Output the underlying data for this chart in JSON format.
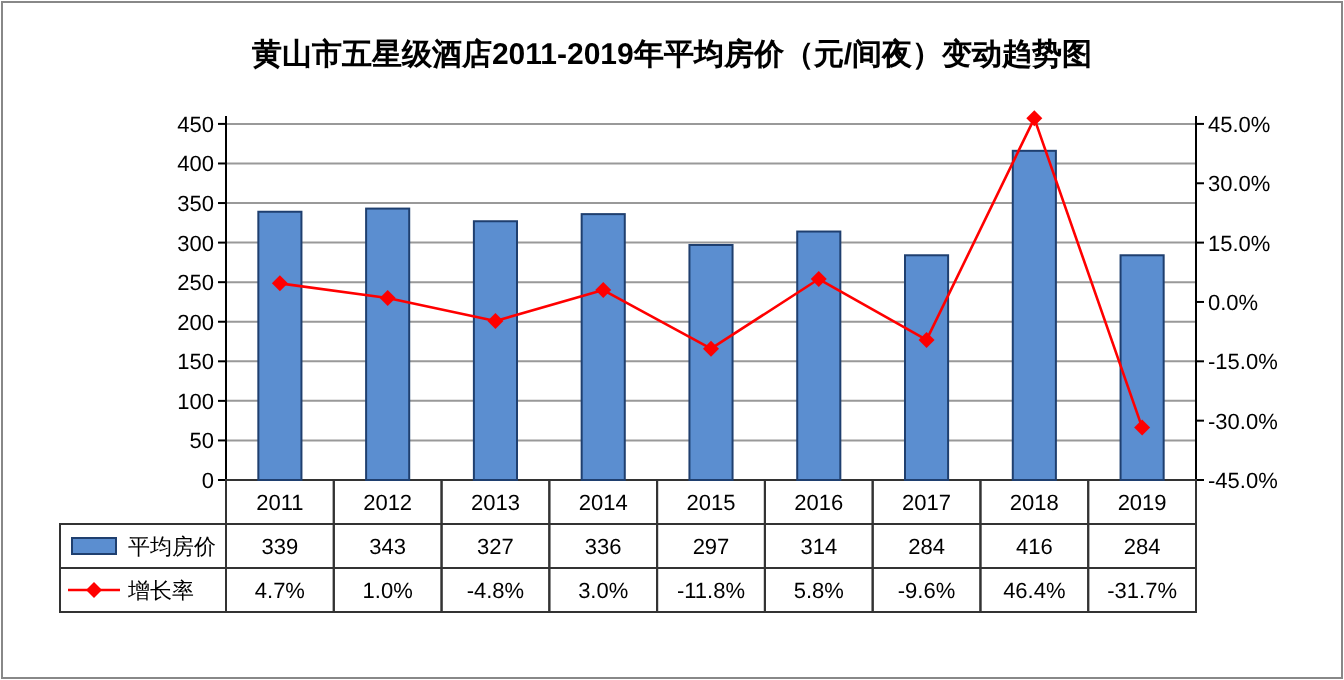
{
  "chart_data": {
    "type": "bar",
    "title": "黄山市五星级酒店2011-2019年平均房价（元/间夜）变动趋势图",
    "categories": [
      "2011",
      "2012",
      "2013",
      "2014",
      "2015",
      "2016",
      "2017",
      "2018",
      "2019"
    ],
    "series": [
      {
        "name": "平均房价",
        "color": "#5b8ed0",
        "values": [
          339,
          343,
          327,
          336,
          297,
          314,
          284,
          416,
          284
        ],
        "value_labels": [
          "339",
          "343",
          "327",
          "336",
          "297",
          "314",
          "284",
          "416",
          "284"
        ]
      },
      {
        "name": "增长率",
        "type": "line",
        "axis": "y2",
        "color": "#ff0000",
        "marker": "diamond",
        "values": [
          4.7,
          1.0,
          -4.8,
          3.0,
          -11.8,
          5.8,
          -9.6,
          46.4,
          -31.7
        ],
        "value_labels": [
          "4.7%",
          "1.0%",
          "-4.8%",
          "3.0%",
          "-11.8%",
          "5.8%",
          "-9.6%",
          "46.4%",
          "-31.7%"
        ]
      }
    ],
    "ylim": [
      0,
      460
    ],
    "yticks": [
      0,
      50,
      100,
      150,
      200,
      250,
      300,
      350,
      400,
      450
    ],
    "y2lim": [
      -45,
      47
    ],
    "y2ticks": [
      {
        "value": -45,
        "label": "-45.0%"
      },
      {
        "value": -30,
        "label": "-30.0%"
      },
      {
        "value": -15,
        "label": "-15.0%"
      },
      {
        "value": 0,
        "label": "0.0%"
      },
      {
        "value": 15,
        "label": "15.0%"
      },
      {
        "value": 30,
        "label": "30.0%"
      },
      {
        "value": 45,
        "label": "45.0%"
      }
    ],
    "grid": "y",
    "legend": "bottom"
  }
}
